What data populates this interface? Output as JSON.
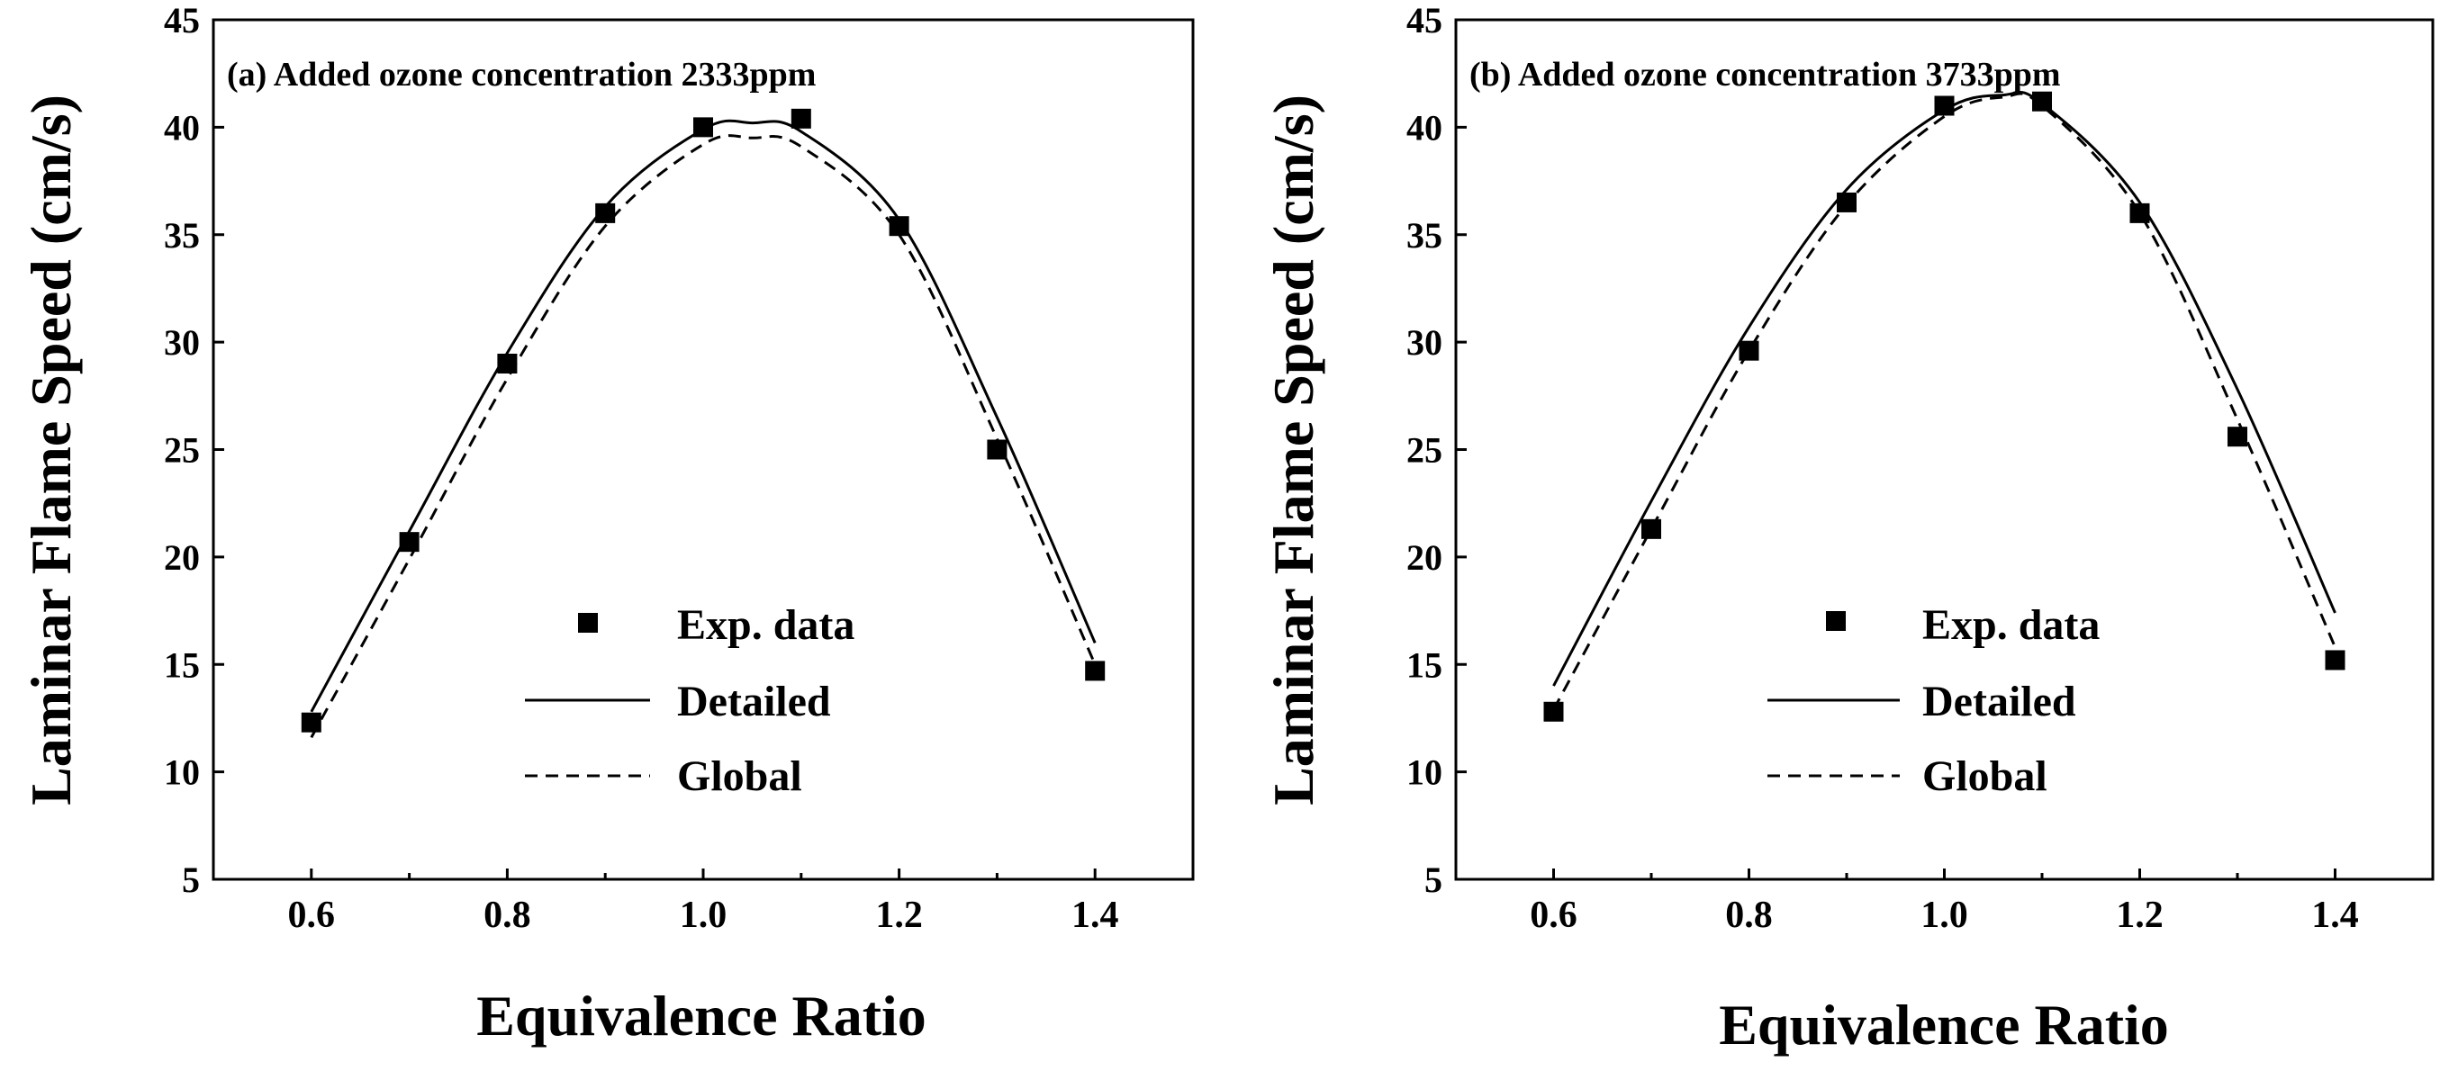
{
  "chart_data": [
    {
      "type": "line",
      "title": "(a) Added ozone concentration 2333ppm",
      "xlabel": "Equivalence Ratio",
      "ylabel": "Laminar Flame Speed (cm/s)",
      "xlim": [
        0.5,
        1.5
      ],
      "ylim": [
        5,
        45
      ],
      "xticks": [
        "0.6",
        "0.8",
        "1.0",
        "1.2",
        "1.4"
      ],
      "yticks": [
        "5",
        "10",
        "15",
        "20",
        "25",
        "30",
        "35",
        "40",
        "45"
      ],
      "legend": {
        "position": "lower-center",
        "entries": [
          "Exp. data",
          "Detailed",
          "Global"
        ]
      },
      "series": [
        {
          "name": "Exp. data",
          "style": "square",
          "x": [
            0.6,
            0.7,
            0.8,
            0.9,
            1.0,
            1.1,
            1.2,
            1.3,
            1.4
          ],
          "y": [
            12.3,
            20.7,
            29.0,
            36.0,
            40.0,
            40.4,
            35.4,
            25.0,
            14.7
          ]
        },
        {
          "name": "Detailed",
          "style": "solid",
          "x": [
            0.6,
            0.7,
            0.8,
            0.9,
            1.0,
            1.05,
            1.1,
            1.2,
            1.3,
            1.4
          ],
          "y": [
            12.8,
            21.2,
            29.5,
            36.3,
            39.9,
            40.2,
            39.8,
            35.7,
            26.5,
            16.0
          ]
        },
        {
          "name": "Global",
          "style": "dashed",
          "x": [
            0.6,
            0.7,
            0.8,
            0.9,
            1.0,
            1.05,
            1.1,
            1.2,
            1.3,
            1.4
          ],
          "y": [
            11.6,
            19.9,
            28.3,
            35.4,
            39.2,
            39.5,
            39.1,
            35.0,
            25.5,
            15.0
          ]
        }
      ]
    },
    {
      "type": "line",
      "title": "(b) Added ozone concentration 3733ppm",
      "xlabel": "Equivalence Ratio",
      "ylabel": "Laminar Flame Speed (cm/s)",
      "xlim": [
        0.5,
        1.5
      ],
      "ylim": [
        5,
        45
      ],
      "xticks": [
        "0.6",
        "0.8",
        "1.0",
        "1.2",
        "1.4"
      ],
      "yticks": [
        "5",
        "10",
        "15",
        "20",
        "25",
        "30",
        "35",
        "40",
        "45"
      ],
      "legend": {
        "position": "lower-center",
        "entries": [
          "Exp. data",
          "Detailed",
          "Global"
        ]
      },
      "series": [
        {
          "name": "Exp. data",
          "style": "square",
          "x": [
            0.6,
            0.7,
            0.8,
            0.9,
            1.0,
            1.1,
            1.2,
            1.3,
            1.4
          ],
          "y": [
            12.8,
            21.3,
            29.6,
            36.5,
            41.0,
            41.2,
            36.0,
            25.6,
            15.2
          ]
        },
        {
          "name": "Detailed",
          "style": "solid",
          "x": [
            0.6,
            0.7,
            0.8,
            0.9,
            1.0,
            1.06,
            1.1,
            1.2,
            1.3,
            1.4
          ],
          "y": [
            14.0,
            22.6,
            30.7,
            37.1,
            40.8,
            41.5,
            41.1,
            36.5,
            27.8,
            17.4
          ]
        },
        {
          "name": "Global",
          "style": "dashed",
          "x": [
            0.6,
            0.7,
            0.8,
            0.9,
            1.0,
            1.06,
            1.1,
            1.2,
            1.3,
            1.4
          ],
          "y": [
            12.9,
            21.3,
            29.6,
            36.4,
            40.5,
            41.4,
            41.0,
            36.0,
            26.4,
            15.8
          ]
        }
      ]
    }
  ]
}
